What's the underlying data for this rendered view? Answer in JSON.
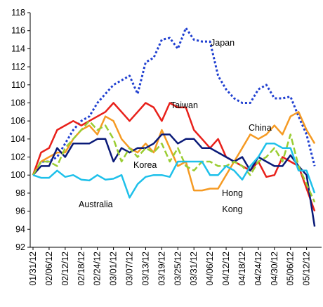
{
  "chart_data": {
    "type": "line",
    "categories": [
      "01/31/12",
      null,
      "02/06/12",
      null,
      "02/12/12",
      null,
      "02/18/12",
      null,
      "02/24/12",
      null,
      "03/01/12",
      null,
      "03/07/12",
      null,
      "03/13/12",
      null,
      "03/19/12",
      null,
      "03/25/12",
      null,
      "03/31/12",
      null,
      "04/06/12",
      null,
      "04/12/12",
      null,
      "04/18/12",
      null,
      "04/24/12",
      null,
      "04/30/12",
      null,
      "05/06/12",
      null,
      "05/12/12",
      null
    ],
    "series": [
      {
        "name": "Japan",
        "color": "#1f3fd0",
        "dash": "dotted",
        "values": [
          100,
          101.5,
          101.5,
          102,
          103.5,
          105,
          106,
          106.5,
          108,
          109,
          110,
          110.5,
          111,
          109,
          112.5,
          113,
          115,
          115.2,
          114,
          116.3,
          115,
          114.8,
          114.8,
          111,
          109.5,
          108.5,
          108,
          108,
          109.5,
          110,
          108.5,
          108.5,
          108.7,
          106.5,
          104.5,
          101
        ]
      },
      {
        "name": "Taiwan",
        "color": "#e8201a",
        "values": [
          100,
          102.5,
          103,
          105,
          105.5,
          106,
          105.5,
          106,
          106.5,
          107,
          108,
          107,
          106,
          107,
          108,
          107.5,
          106,
          108,
          107.5,
          107.5,
          105,
          104,
          103,
          104,
          102,
          101.5,
          101,
          100.5,
          101.5,
          99.8,
          100,
          102,
          101.5,
          101,
          98.5,
          96
        ]
      },
      {
        "name": "China",
        "color": "#f59a23",
        "values": [
          100,
          101.5,
          102,
          102.5,
          102.5,
          104,
          105,
          105.5,
          104.5,
          106.5,
          106,
          104,
          103,
          102.5,
          103.5,
          102.5,
          105,
          103,
          101,
          101.5,
          98.3,
          98.3,
          98.5,
          98.5,
          100,
          101.5,
          103,
          104.5,
          104,
          104.5,
          105.5,
          104.5,
          106.5,
          107,
          105,
          103.5
        ]
      },
      {
        "name": "Korea",
        "color": "#0a1a78",
        "values": [
          100,
          101,
          101,
          103,
          102,
          103.5,
          103.5,
          103.5,
          104,
          104,
          101.5,
          103,
          102.5,
          103,
          103,
          103.5,
          104.5,
          104.5,
          103.5,
          104,
          104,
          103,
          103,
          102.5,
          102,
          101.5,
          102,
          100.5,
          102,
          101.5,
          101,
          101,
          102.2,
          101,
          100,
          94.3
        ]
      },
      {
        "name": "Hong Kong",
        "color": "#9acd32",
        "dash": "dashed",
        "values": [
          100,
          101.5,
          101.5,
          101,
          103,
          104,
          105,
          106,
          105,
          105.5,
          104,
          101.5,
          103,
          102,
          103,
          102.5,
          103.5,
          101.5,
          103,
          101,
          100.5,
          101.5,
          101.5,
          101,
          101,
          101.5,
          101,
          100,
          101.5,
          102,
          103,
          101.5,
          104.5,
          101,
          99,
          97
        ]
      },
      {
        "name": "Australia",
        "color": "#1ec0ea",
        "values": [
          100,
          99.7,
          99.7,
          100.5,
          99.8,
          100,
          99.5,
          99.4,
          100,
          99.5,
          99.6,
          100,
          97.5,
          99,
          99.8,
          100,
          100,
          99.8,
          101.5,
          101.5,
          101.5,
          101.5,
          100,
          100,
          101,
          100.5,
          99.5,
          101,
          102,
          103.5,
          103.5,
          103,
          103,
          100.5,
          100.5,
          98
        ]
      }
    ],
    "ylim": [
      92,
      118
    ],
    "yticks": [
      92,
      94,
      96,
      98,
      100,
      102,
      104,
      106,
      108,
      110,
      112,
      114,
      116,
      118
    ]
  }
}
